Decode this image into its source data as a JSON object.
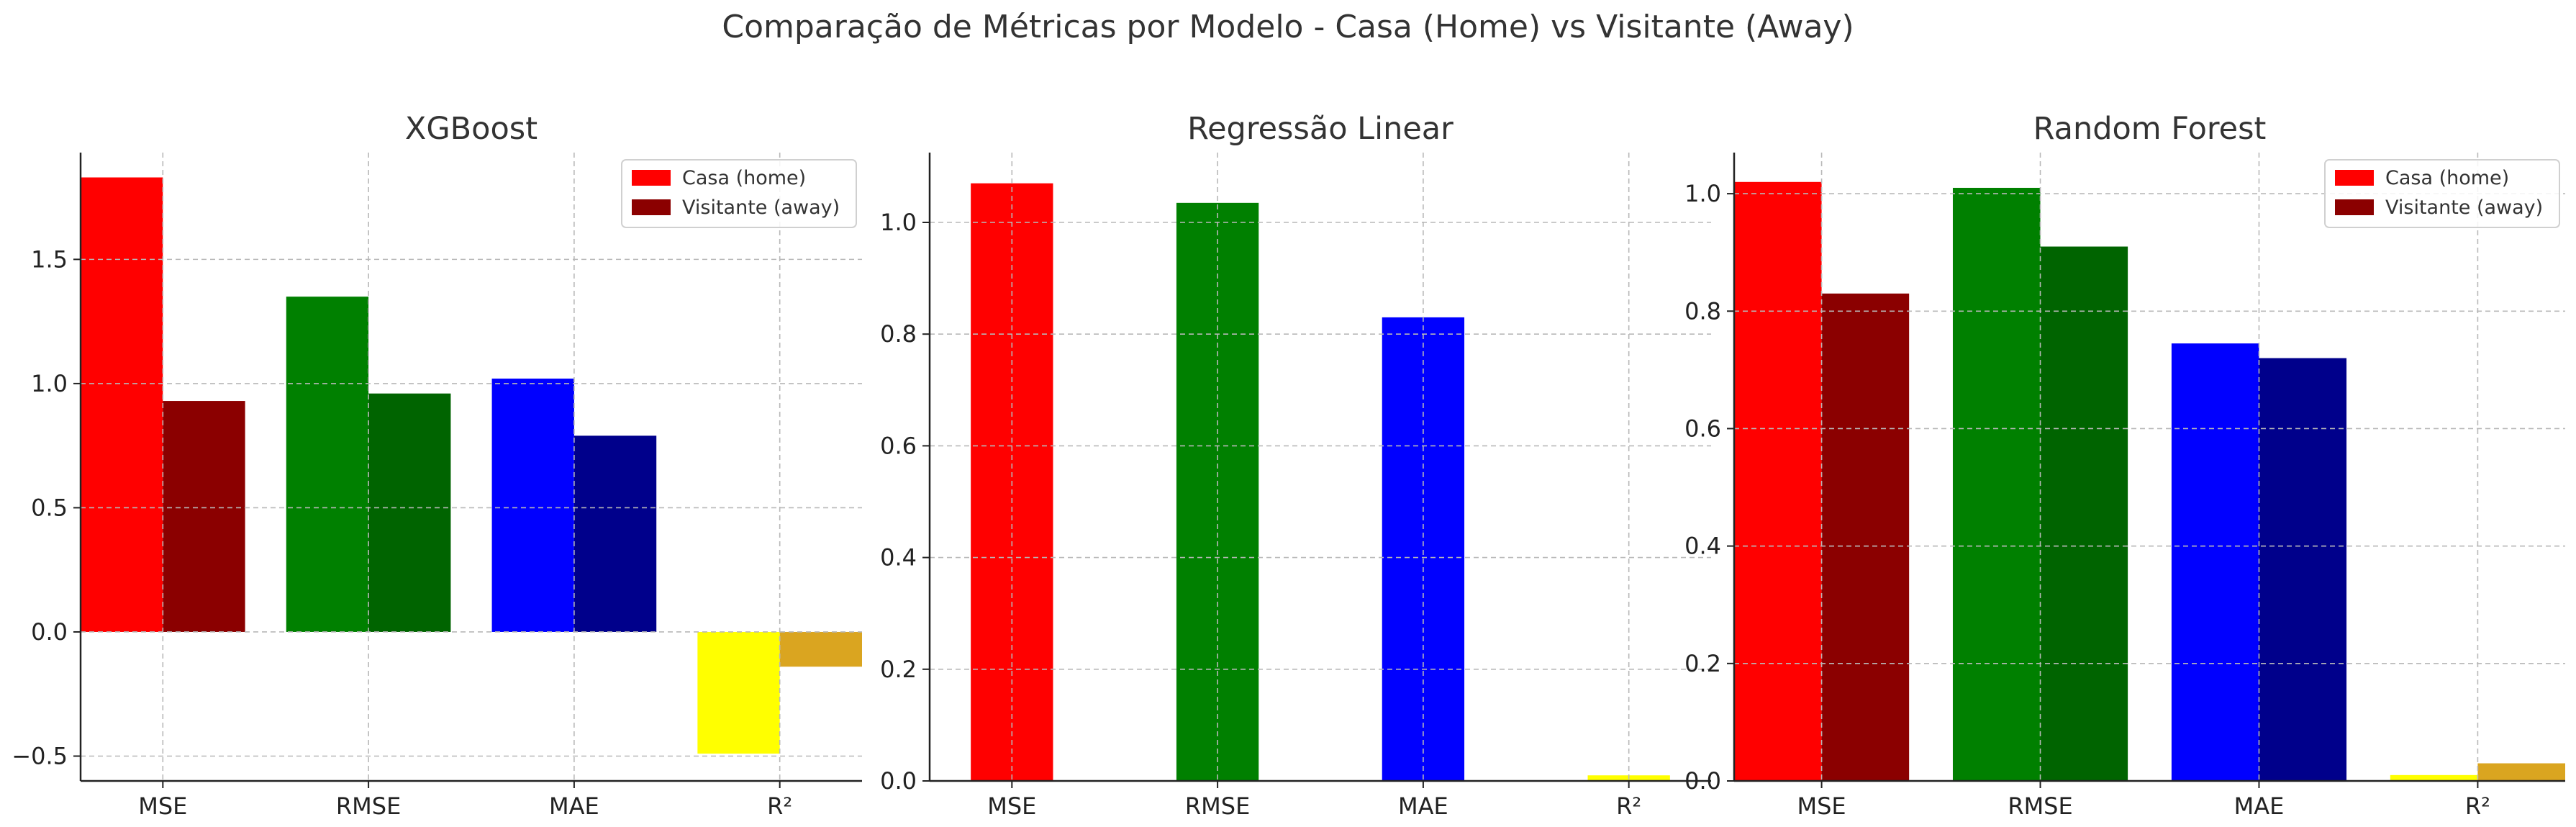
{
  "figure": {
    "suptitle": "Comparação de Métricas por Modelo - Casa (Home) vs Visitante (Away)"
  },
  "chart_data": [
    {
      "type": "bar",
      "title": "XGBoost",
      "xlabel": "",
      "ylabel": "",
      "categories": [
        "MSE",
        "RMSE",
        "MAE",
        "R²"
      ],
      "ylim": [
        -0.6,
        1.93
      ],
      "yticks": [
        -0.5,
        0.0,
        0.5,
        1.0,
        1.5
      ],
      "ytick_labels": [
        "−0.5",
        "0.0",
        "0.5",
        "1.0",
        "1.5"
      ],
      "grid": true,
      "legend": "top-right",
      "series": [
        {
          "name": "Casa (home)",
          "values": [
            1.83,
            1.35,
            1.02,
            -0.49
          ],
          "colors": [
            "#ff0000",
            "#008000",
            "#0000ff",
            "#ffff00"
          ],
          "legend_color": "#ff0000"
        },
        {
          "name": "Visitante (away)",
          "values": [
            0.93,
            0.96,
            0.79,
            -0.14
          ],
          "colors": [
            "#8b0000",
            "#006400",
            "#00008b",
            "#daa520"
          ],
          "legend_color": "#8b0000"
        }
      ]
    },
    {
      "type": "bar",
      "title": "Regressão Linear",
      "xlabel": "",
      "ylabel": "",
      "categories": [
        "MSE",
        "RMSE",
        "MAE",
        "R²"
      ],
      "ylim": [
        0,
        1.125
      ],
      "yticks": [
        0.0,
        0.2,
        0.4,
        0.6,
        0.8,
        1.0
      ],
      "ytick_labels": [
        "0.0",
        "0.2",
        "0.4",
        "0.6",
        "0.8",
        "1.0"
      ],
      "grid": true,
      "legend": "none",
      "series": [
        {
          "name": "",
          "values": [
            1.07,
            1.035,
            0.83,
            0.01
          ],
          "colors": [
            "#ff0000",
            "#008000",
            "#0000ff",
            "#ffff00"
          ]
        }
      ]
    },
    {
      "type": "bar",
      "title": "Random Forest",
      "xlabel": "",
      "ylabel": "",
      "categories": [
        "MSE",
        "RMSE",
        "MAE",
        "R²"
      ],
      "ylim": [
        0,
        1.07
      ],
      "yticks": [
        0.0,
        0.2,
        0.4,
        0.6,
        0.8,
        1.0
      ],
      "ytick_labels": [
        "0.0",
        "0.2",
        "0.4",
        "0.6",
        "0.8",
        "1.0"
      ],
      "grid": true,
      "legend": "top-right",
      "series": [
        {
          "name": "Casa (home)",
          "values": [
            1.02,
            1.01,
            0.745,
            0.01
          ],
          "colors": [
            "#ff0000",
            "#008000",
            "#0000ff",
            "#ffff00"
          ],
          "legend_color": "#ff0000"
        },
        {
          "name": "Visitante (away)",
          "values": [
            0.83,
            0.91,
            0.72,
            0.03
          ],
          "colors": [
            "#8b0000",
            "#006400",
            "#00008b",
            "#daa520"
          ],
          "legend_color": "#8b0000"
        }
      ]
    }
  ]
}
